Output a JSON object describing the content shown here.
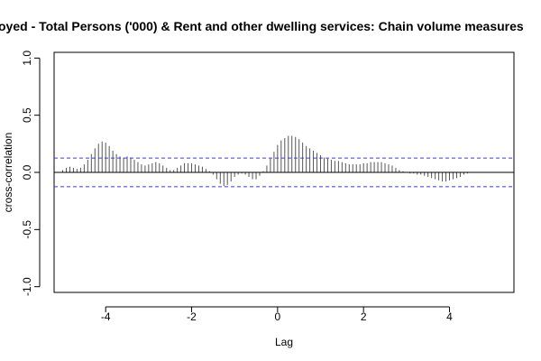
{
  "chart_data": {
    "type": "bar",
    "title": "oyed - Total Persons ('000) & Rent and other dwelling services: Chain volume measures",
    "xlabel": "Lag",
    "ylabel": "cross-correlation",
    "xlim": [
      -5.2,
      5.5
    ],
    "ylim": [
      -1.05,
      1.05
    ],
    "x_ticks": [
      -4,
      -2,
      0,
      2,
      4
    ],
    "x_tick_labels": [
      "-4",
      "-2",
      "0",
      "2",
      "4"
    ],
    "y_ticks": [
      -1.0,
      -0.5,
      0.0,
      0.5,
      1.0
    ],
    "y_tick_labels": [
      "-1.0",
      "-0.5",
      "0.0",
      "0.5",
      "1.0"
    ],
    "confidence_band": 0.125,
    "zero_line": 0,
    "grid": false,
    "x": [
      -5.0,
      -4.917,
      -4.833,
      -4.75,
      -4.667,
      -4.583,
      -4.5,
      -4.417,
      -4.333,
      -4.25,
      -4.167,
      -4.083,
      -4.0,
      -3.917,
      -3.833,
      -3.75,
      -3.667,
      -3.583,
      -3.5,
      -3.417,
      -3.333,
      -3.25,
      -3.167,
      -3.083,
      -3.0,
      -2.917,
      -2.833,
      -2.75,
      -2.667,
      -2.583,
      -2.5,
      -2.417,
      -2.333,
      -2.25,
      -2.167,
      -2.083,
      -2.0,
      -1.917,
      -1.833,
      -1.75,
      -1.667,
      -1.583,
      -1.5,
      -1.417,
      -1.333,
      -1.25,
      -1.167,
      -1.083,
      -1.0,
      -0.917,
      -0.833,
      -0.75,
      -0.667,
      -0.583,
      -0.5,
      -0.417,
      -0.333,
      -0.25,
      -0.167,
      -0.083,
      0.0,
      0.083,
      0.167,
      0.25,
      0.333,
      0.417,
      0.5,
      0.583,
      0.667,
      0.75,
      0.833,
      0.917,
      1.0,
      1.083,
      1.167,
      1.25,
      1.333,
      1.417,
      1.5,
      1.583,
      1.667,
      1.75,
      1.833,
      1.917,
      2.0,
      2.083,
      2.167,
      2.25,
      2.333,
      2.417,
      2.5,
      2.583,
      2.667,
      2.75,
      2.833,
      2.917,
      3.0,
      3.083,
      3.167,
      3.25,
      3.333,
      3.417,
      3.5,
      3.583,
      3.667,
      3.75,
      3.833,
      3.917,
      4.0,
      4.083,
      4.167,
      4.25,
      4.333,
      4.417,
      4.5,
      4.583,
      4.667,
      4.75,
      4.833,
      4.917,
      5.0
    ],
    "values": [
      0.02,
      0.04,
      0.05,
      0.04,
      0.03,
      0.04,
      0.07,
      0.11,
      0.16,
      0.21,
      0.25,
      0.27,
      0.26,
      0.23,
      0.19,
      0.16,
      0.14,
      0.13,
      0.14,
      0.13,
      0.11,
      0.09,
      0.07,
      0.06,
      0.07,
      0.08,
      0.09,
      0.08,
      0.06,
      0.04,
      0.02,
      0.02,
      0.04,
      0.06,
      0.08,
      0.08,
      0.08,
      0.07,
      0.06,
      0.05,
      0.03,
      0.01,
      -0.02,
      -0.06,
      -0.1,
      -0.12,
      -0.11,
      -0.08,
      -0.04,
      -0.02,
      -0.01,
      -0.02,
      -0.04,
      -0.06,
      -0.06,
      -0.03,
      0.01,
      0.06,
      0.12,
      0.18,
      0.24,
      0.28,
      0.3,
      0.32,
      0.32,
      0.31,
      0.29,
      0.26,
      0.23,
      0.21,
      0.19,
      0.17,
      0.15,
      0.13,
      0.12,
      0.11,
      0.1,
      0.1,
      0.09,
      0.08,
      0.07,
      0.07,
      0.07,
      0.07,
      0.08,
      0.08,
      0.09,
      0.09,
      0.09,
      0.09,
      0.08,
      0.07,
      0.06,
      0.04,
      0.02,
      0.01,
      0.0,
      -0.01,
      -0.01,
      -0.02,
      -0.02,
      -0.03,
      -0.04,
      -0.05,
      -0.06,
      -0.07,
      -0.08,
      -0.08,
      -0.07,
      -0.06,
      -0.05,
      -0.04,
      -0.02,
      -0.01,
      0.0,
      0.0,
      0.0,
      0.0,
      0.0,
      0.0,
      0.0
    ],
    "colors": {
      "bars": "#555555",
      "zero_line": "#000000",
      "confidence": "#3b3bdc",
      "axis": "#000000",
      "background": "#ffffff"
    }
  }
}
